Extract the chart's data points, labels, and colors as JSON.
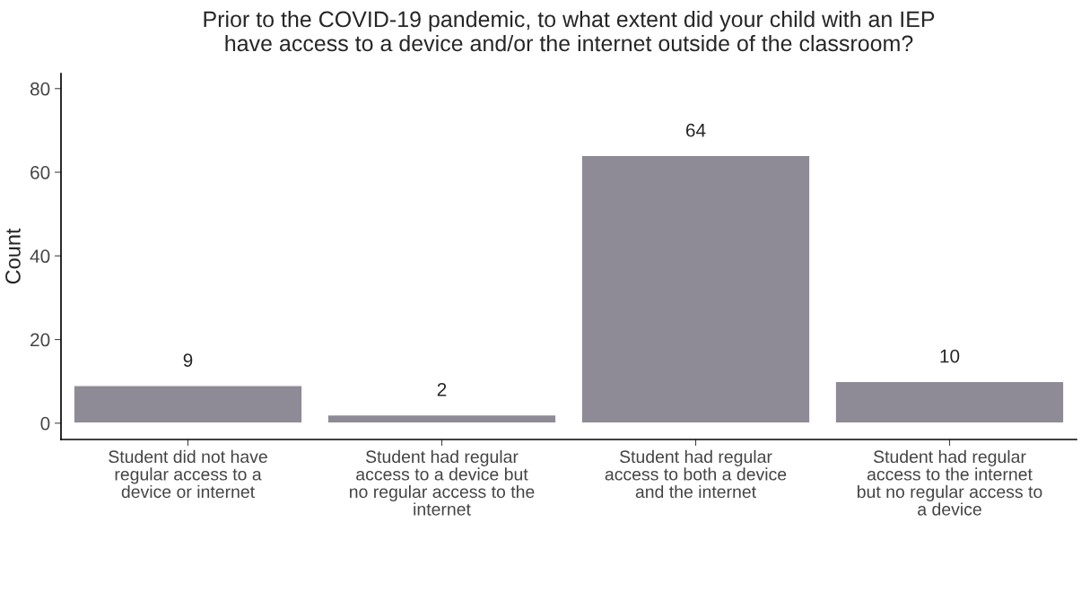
{
  "chart_data": {
    "type": "bar",
    "title": "Prior to the COVID-19 pandemic, to what extent did your child with an IEP\nhave access to a device and/or the internet outside of the classroom?",
    "ylabel": "Count",
    "categories": [
      "Student did not have\nregular access to a\ndevice or internet",
      "Student had regular\naccess to a device but\nno regular access to the\ninternet",
      "Student had regular\naccess to both a device\nand the internet",
      "Student had regular\naccess to the internet\nbut no regular access to\na device"
    ],
    "values": [
      9,
      2,
      64,
      10
    ],
    "color": "#8e8b96",
    "ylim": [
      -3.9,
      83.6
    ],
    "yticks": [
      0,
      20,
      40,
      60,
      80
    ],
    "data_labels": true
  }
}
